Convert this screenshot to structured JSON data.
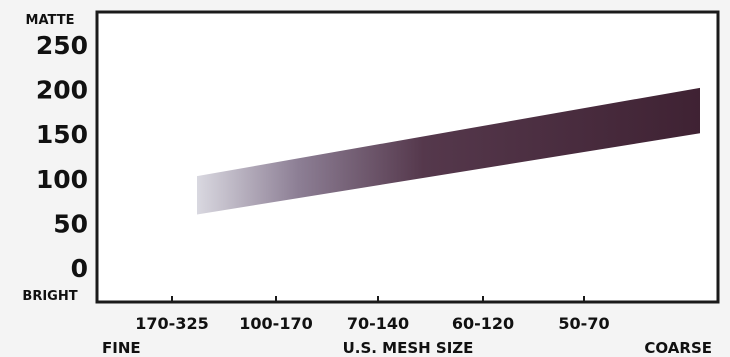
{
  "chart_data": {
    "type": "area",
    "title": "",
    "top_label": "MATTE",
    "bottom_label": "BRIGHT",
    "xlabel": "U.S. MESH SIZE",
    "x_left_label": "FINE",
    "x_right_label": "COARSE",
    "yticks": [
      "250",
      "200",
      "150",
      "100",
      "50",
      "0"
    ],
    "ylim": [
      0,
      250
    ],
    "categories": [
      "170-325",
      "100-170",
      "70-140",
      "60-120",
      "50-70"
    ],
    "series": [
      {
        "x": [
          "170-325",
          "50-70"
        ],
        "upper": [
          103,
          202
        ],
        "lower": [
          60,
          151
        ]
      }
    ],
    "grid": false,
    "colors": {
      "band_start": "#d9d8e0",
      "band_end": "#3f2233"
    }
  }
}
